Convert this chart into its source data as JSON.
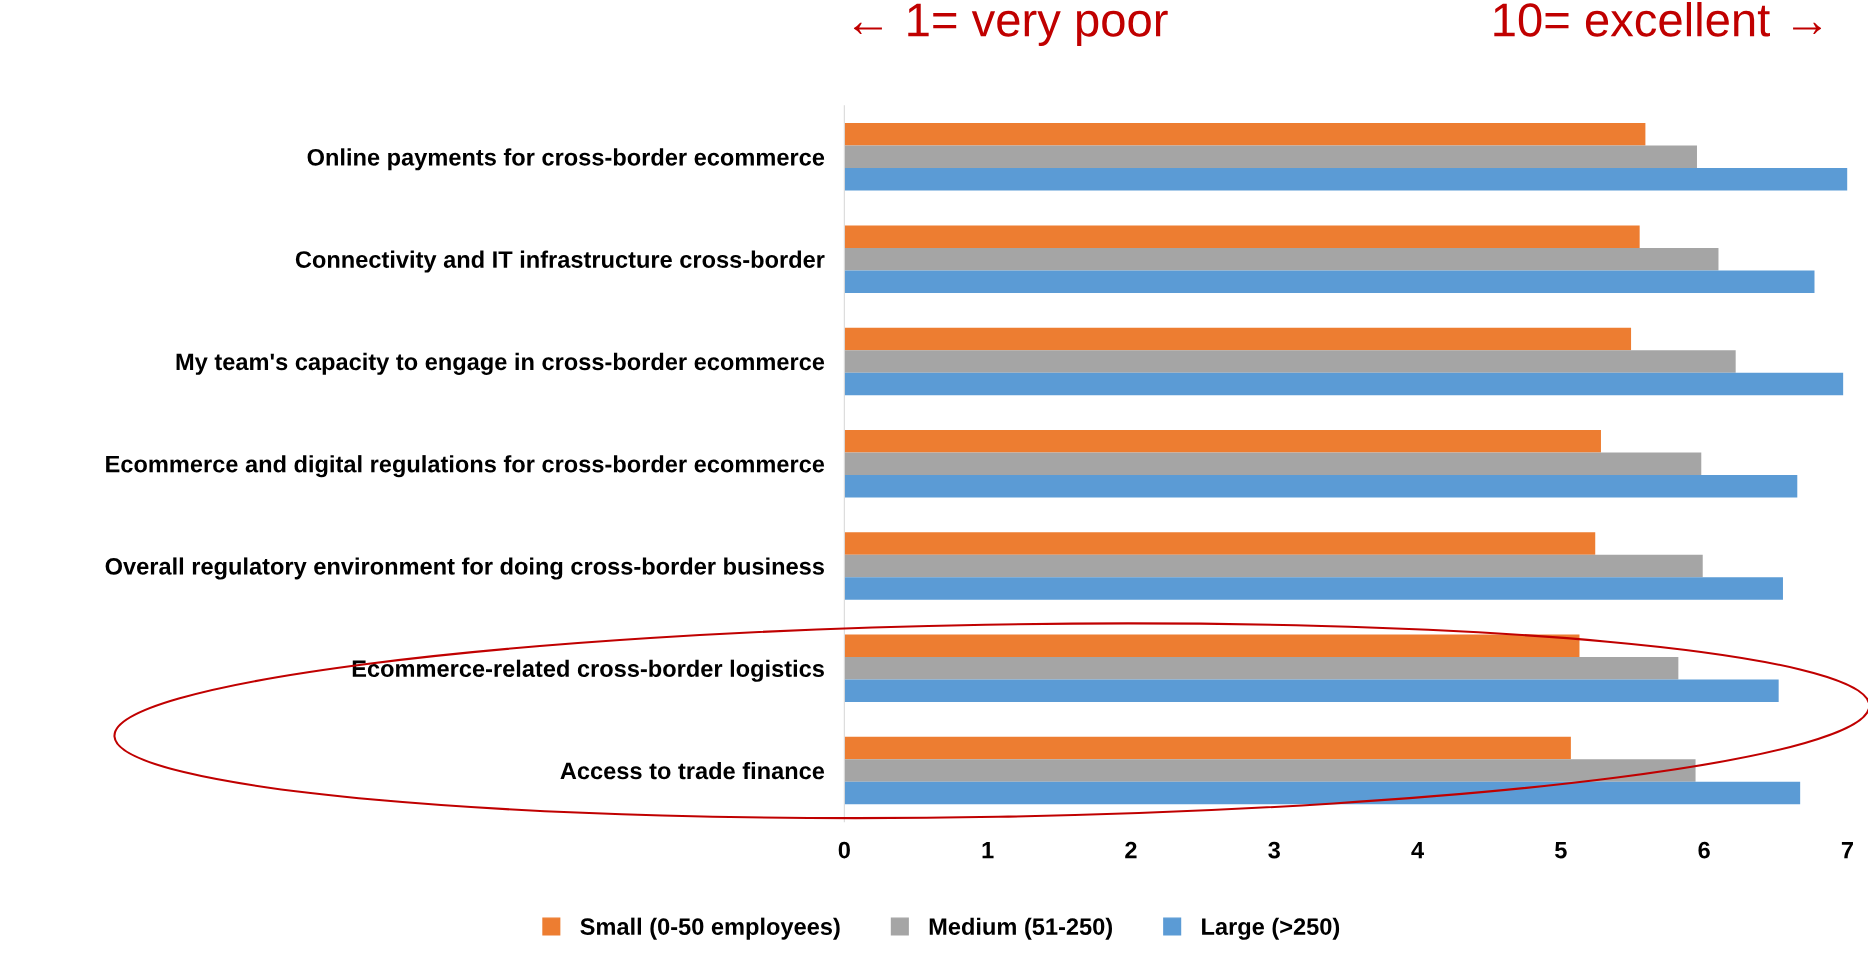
{
  "chart_data": {
    "type": "bar",
    "orientation": "horizontal",
    "categories": [
      "Online payments for cross-border ecommerce",
      "Connectivity and IT infrastructure cross-border",
      "My team's capacity to engage in cross-border ecommerce",
      "Ecommerce and digital regulations for cross-border ecommerce",
      "Overall regulatory environment for doing cross-border business",
      "Ecommerce-related cross-border logistics",
      "Access to trade finance"
    ],
    "series": [
      {
        "name": "Small (0-50 employees)",
        "color": "#ed7d31",
        "values": [
          5.59,
          5.55,
          5.49,
          5.28,
          5.24,
          5.13,
          5.07
        ]
      },
      {
        "name": "Medium (51-250)",
        "color": "#a5a5a5",
        "values": [
          5.95,
          6.1,
          6.22,
          5.98,
          5.99,
          5.82,
          5.94
        ]
      },
      {
        "name": "Large (>250)",
        "color": "#5b9bd5",
        "values": [
          7.0,
          6.77,
          6.97,
          6.65,
          6.55,
          6.52,
          6.67
        ]
      }
    ],
    "xlim": [
      0,
      7
    ],
    "xticks": [
      0,
      1,
      2,
      3,
      4,
      5,
      6,
      7
    ],
    "annotations": [
      "← 1= very poor",
      "10= excellent →"
    ],
    "legend": "bottom",
    "marker": "square",
    "grid": false
  }
}
